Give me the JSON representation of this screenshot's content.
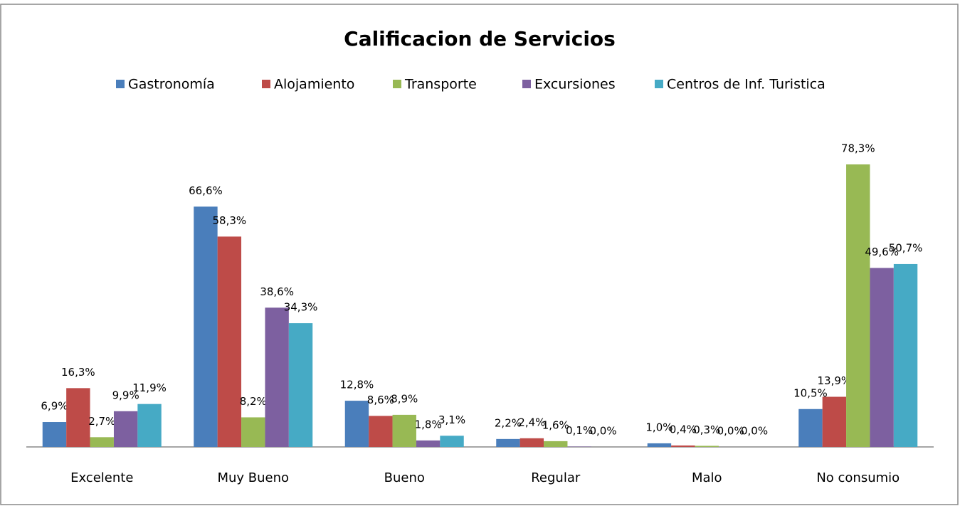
{
  "chart_data": {
    "type": "bar",
    "title": "Calificacion de Servicios",
    "categories": [
      "Excelente",
      "Muy Bueno",
      "Bueno",
      "Regular",
      "Malo",
      "No consumio"
    ],
    "series": [
      {
        "name": "Gastronomía",
        "color": "#4a7ebb",
        "values": [
          6.9,
          66.6,
          12.8,
          2.2,
          1.0,
          10.5
        ],
        "value_labels": [
          "6,9%",
          "66,6%",
          "12,8%",
          "2,2%",
          "1,0%",
          "10,5%"
        ]
      },
      {
        "name": "Alojamiento",
        "color": "#be4b48",
        "values": [
          16.3,
          58.3,
          8.6,
          2.4,
          0.4,
          13.9
        ],
        "value_labels": [
          "16,3%",
          "58,3%",
          "8,6%",
          "2,4%",
          "0,4%",
          "13,9%"
        ]
      },
      {
        "name": "Transporte",
        "color": "#98b954",
        "values": [
          2.7,
          8.2,
          8.9,
          1.6,
          0.3,
          78.3
        ],
        "value_labels": [
          "2,7%",
          "8,2%",
          "8,9%",
          "1,6%",
          "0,3%",
          "78,3%"
        ]
      },
      {
        "name": "Excursiones",
        "color": "#7d60a0",
        "values": [
          9.9,
          38.6,
          1.8,
          0.1,
          0.0,
          49.6
        ],
        "value_labels": [
          "9,9%",
          "38,6%",
          "1,8%",
          "0,1%",
          "0,0%",
          "49,6%"
        ]
      },
      {
        "name": "Centros de Inf. Turistica",
        "color": "#46aac5",
        "values": [
          11.9,
          34.3,
          3.1,
          0.0,
          0.0,
          50.7
        ],
        "value_labels": [
          "11,9%",
          "34,3%",
          "3,1%",
          "0,0%",
          "0,0%",
          "50,7%"
        ]
      }
    ],
    "legend": "top"
  }
}
